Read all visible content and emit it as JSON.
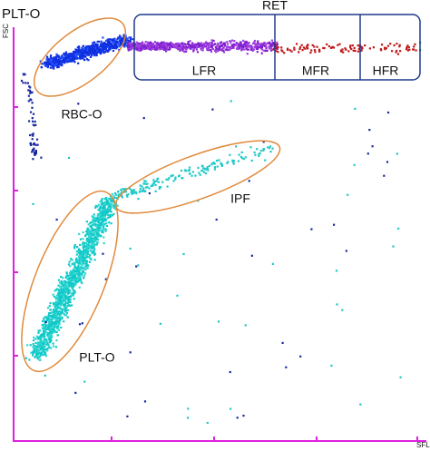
{
  "title": "PLT-O",
  "y_axis_label": "FSC",
  "x_axis_label": "SFL",
  "regions": {
    "ret": "RET",
    "lfr": "LFR",
    "mfr": "MFR",
    "hfr": "HFR",
    "rbc": "RBC-O",
    "ipf": "IPF",
    "plt": "PLT-O"
  }
}
